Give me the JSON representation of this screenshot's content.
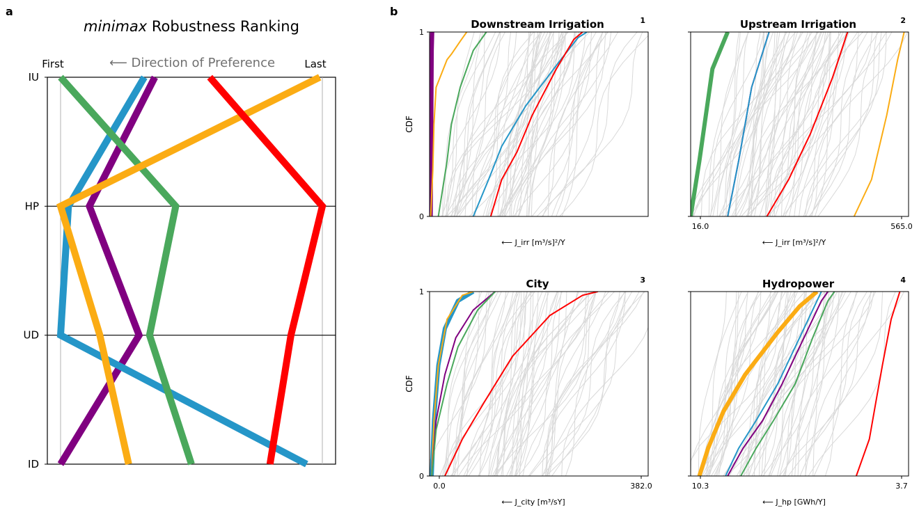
{
  "panel_a": {
    "letter": "a",
    "title_italic": "minimax",
    "title_rest": " Robustness Ranking",
    "first_label": "First",
    "last_label": "Last",
    "direction_label": "⟵ Direction of Preference"
  },
  "panel_b": {
    "letter": "b"
  },
  "colors": {
    "purple": "#800080",
    "blue": "#2596c8",
    "green": "#4aa85c",
    "orange": "#fbac14",
    "red": "#ff0000",
    "background_lines": "#d9d9d9"
  },
  "chart_data": [
    {
      "type": "line",
      "name": "parallel-coordinates",
      "axes": [
        "IU",
        "HP",
        "UD",
        "ID"
      ],
      "x_range": [
        "First",
        "Last"
      ],
      "series": [
        {
          "color": "purple",
          "values": [
            0.36,
            0.11,
            0.3,
            0.0
          ]
        },
        {
          "color": "blue",
          "values": [
            0.32,
            0.03,
            0.0,
            0.94
          ]
        },
        {
          "color": "green",
          "values": [
            0.0,
            0.44,
            0.34,
            0.5
          ]
        },
        {
          "color": "orange",
          "values": [
            0.99,
            0.0,
            0.15,
            0.26
          ]
        },
        {
          "color": "red",
          "values": [
            0.57,
            1.0,
            0.88,
            0.8
          ]
        }
      ]
    },
    {
      "type": "line",
      "title": "Downstream Irrigation",
      "number": "1",
      "ylabel": "CDF",
      "xlabel": "⟵ J_irr [m³/s]²/Y",
      "xticks": [],
      "yticks": [
        "0",
        "1"
      ],
      "highlight": [
        {
          "color": "purple",
          "width": 6,
          "points": [
            [
              0.005,
              0
            ],
            [
              0.01,
              0.9
            ],
            [
              0.012,
              1
            ]
          ]
        },
        {
          "color": "orange",
          "width": 2,
          "points": [
            [
              0.005,
              0
            ],
            [
              0.015,
              0.25
            ],
            [
              0.02,
              0.5
            ],
            [
              0.03,
              0.7
            ],
            [
              0.08,
              0.85
            ],
            [
              0.1,
              0.88
            ],
            [
              0.14,
              0.95
            ],
            [
              0.17,
              1
            ]
          ]
        },
        {
          "color": "green",
          "width": 2,
          "points": [
            [
              0.04,
              0
            ],
            [
              0.08,
              0.3
            ],
            [
              0.1,
              0.5
            ],
            [
              0.14,
              0.7
            ],
            [
              0.2,
              0.9
            ],
            [
              0.26,
              1
            ]
          ]
        },
        {
          "color": "blue",
          "width": 2,
          "points": [
            [
              0.2,
              0
            ],
            [
              0.27,
              0.2
            ],
            [
              0.33,
              0.38
            ],
            [
              0.44,
              0.6
            ],
            [
              0.6,
              0.85
            ],
            [
              0.68,
              0.97
            ],
            [
              0.72,
              1
            ]
          ]
        },
        {
          "color": "red",
          "width": 2,
          "points": [
            [
              0.28,
              0
            ],
            [
              0.33,
              0.2
            ],
            [
              0.4,
              0.35
            ],
            [
              0.47,
              0.55
            ],
            [
              0.58,
              0.8
            ],
            [
              0.66,
              0.96
            ],
            [
              0.7,
              1
            ]
          ]
        }
      ]
    },
    {
      "type": "line",
      "title": "Upstream Irrigation",
      "number": "2",
      "ylabel": "",
      "xlabel": "⟵ J_irr [m³/s]²/Y",
      "xticks": [
        "16.0",
        "565.0"
      ],
      "yticks": [],
      "highlight": [
        {
          "color": "green",
          "width": 6,
          "points": [
            [
              0.0,
              0
            ],
            [
              0.04,
              0.3
            ],
            [
              0.1,
              0.8
            ],
            [
              0.17,
              1
            ]
          ]
        },
        {
          "color": "purple",
          "width": 2,
          "points": [
            [
              0.17,
              0
            ],
            [
              0.22,
              0.3
            ],
            [
              0.28,
              0.7
            ],
            [
              0.36,
              1
            ]
          ]
        },
        {
          "color": "blue",
          "width": 2,
          "points": [
            [
              0.17,
              0
            ],
            [
              0.22,
              0.3
            ],
            [
              0.28,
              0.7
            ],
            [
              0.36,
              1
            ]
          ]
        },
        {
          "color": "red",
          "width": 2,
          "points": [
            [
              0.35,
              0
            ],
            [
              0.45,
              0.2
            ],
            [
              0.55,
              0.45
            ],
            [
              0.65,
              0.75
            ],
            [
              0.72,
              1
            ]
          ]
        },
        {
          "color": "orange",
          "width": 2,
          "points": [
            [
              0.75,
              0
            ],
            [
              0.83,
              0.2
            ],
            [
              0.9,
              0.55
            ],
            [
              0.95,
              0.85
            ],
            [
              0.98,
              1
            ]
          ]
        }
      ]
    },
    {
      "type": "line",
      "title": "City",
      "number": "3",
      "ylabel": "CDF",
      "xlabel": "⟵ J_city [m³/sY]",
      "xticks": [
        "0.0",
        "382.0"
      ],
      "yticks": [
        "0",
        "1"
      ],
      "highlight": [
        {
          "color": "blue",
          "width": 6,
          "points": [
            [
              0.01,
              0
            ],
            [
              0.02,
              0.3
            ],
            [
              0.04,
              0.6
            ],
            [
              0.07,
              0.8
            ],
            [
              0.13,
              0.95
            ],
            [
              0.2,
              1
            ]
          ]
        },
        {
          "color": "orange",
          "width": 2,
          "points": [
            [
              0.01,
              0
            ],
            [
              0.02,
              0.3
            ],
            [
              0.04,
              0.6
            ],
            [
              0.08,
              0.85
            ],
            [
              0.15,
              0.98
            ],
            [
              0.2,
              1
            ]
          ]
        },
        {
          "color": "purple",
          "width": 2,
          "points": [
            [
              0.01,
              0
            ],
            [
              0.03,
              0.3
            ],
            [
              0.07,
              0.55
            ],
            [
              0.12,
              0.75
            ],
            [
              0.2,
              0.9
            ],
            [
              0.3,
              1
            ]
          ]
        },
        {
          "color": "green",
          "width": 2,
          "points": [
            [
              0.01,
              0
            ],
            [
              0.03,
              0.25
            ],
            [
              0.08,
              0.5
            ],
            [
              0.13,
              0.7
            ],
            [
              0.22,
              0.9
            ],
            [
              0.3,
              1
            ]
          ]
        },
        {
          "color": "red",
          "width": 2,
          "points": [
            [
              0.07,
              0
            ],
            [
              0.15,
              0.2
            ],
            [
              0.25,
              0.4
            ],
            [
              0.38,
              0.65
            ],
            [
              0.55,
              0.87
            ],
            [
              0.7,
              0.98
            ],
            [
              0.77,
              1
            ]
          ]
        }
      ]
    },
    {
      "type": "line",
      "title": "Hydropower",
      "number": "4",
      "ylabel": "",
      "xlabel": "⟵ J_hp [GWh/Y]",
      "xticks": [
        "10.3",
        "3.7"
      ],
      "yticks": [],
      "highlight": [
        {
          "color": "orange",
          "width": 6,
          "points": [
            [
              0.04,
              0
            ],
            [
              0.08,
              0.15
            ],
            [
              0.15,
              0.35
            ],
            [
              0.25,
              0.55
            ],
            [
              0.4,
              0.78
            ],
            [
              0.5,
              0.92
            ],
            [
              0.58,
              1
            ]
          ]
        },
        {
          "color": "blue",
          "width": 2,
          "points": [
            [
              0.16,
              0
            ],
            [
              0.22,
              0.15
            ],
            [
              0.3,
              0.3
            ],
            [
              0.4,
              0.5
            ],
            [
              0.5,
              0.75
            ],
            [
              0.58,
              0.95
            ],
            [
              0.6,
              1
            ]
          ]
        },
        {
          "color": "purple",
          "width": 2,
          "points": [
            [
              0.17,
              0
            ],
            [
              0.24,
              0.15
            ],
            [
              0.33,
              0.3
            ],
            [
              0.42,
              0.5
            ],
            [
              0.52,
              0.75
            ],
            [
              0.6,
              0.95
            ],
            [
              0.63,
              1
            ]
          ]
        },
        {
          "color": "green",
          "width": 2,
          "points": [
            [
              0.23,
              0
            ],
            [
              0.3,
              0.15
            ],
            [
              0.38,
              0.3
            ],
            [
              0.48,
              0.5
            ],
            [
              0.56,
              0.75
            ],
            [
              0.63,
              0.95
            ],
            [
              0.66,
              1
            ]
          ]
        },
        {
          "color": "red",
          "width": 2,
          "points": [
            [
              0.76,
              0
            ],
            [
              0.82,
              0.2
            ],
            [
              0.85,
              0.4
            ],
            [
              0.88,
              0.6
            ],
            [
              0.92,
              0.85
            ],
            [
              0.96,
              1
            ]
          ]
        }
      ]
    }
  ]
}
